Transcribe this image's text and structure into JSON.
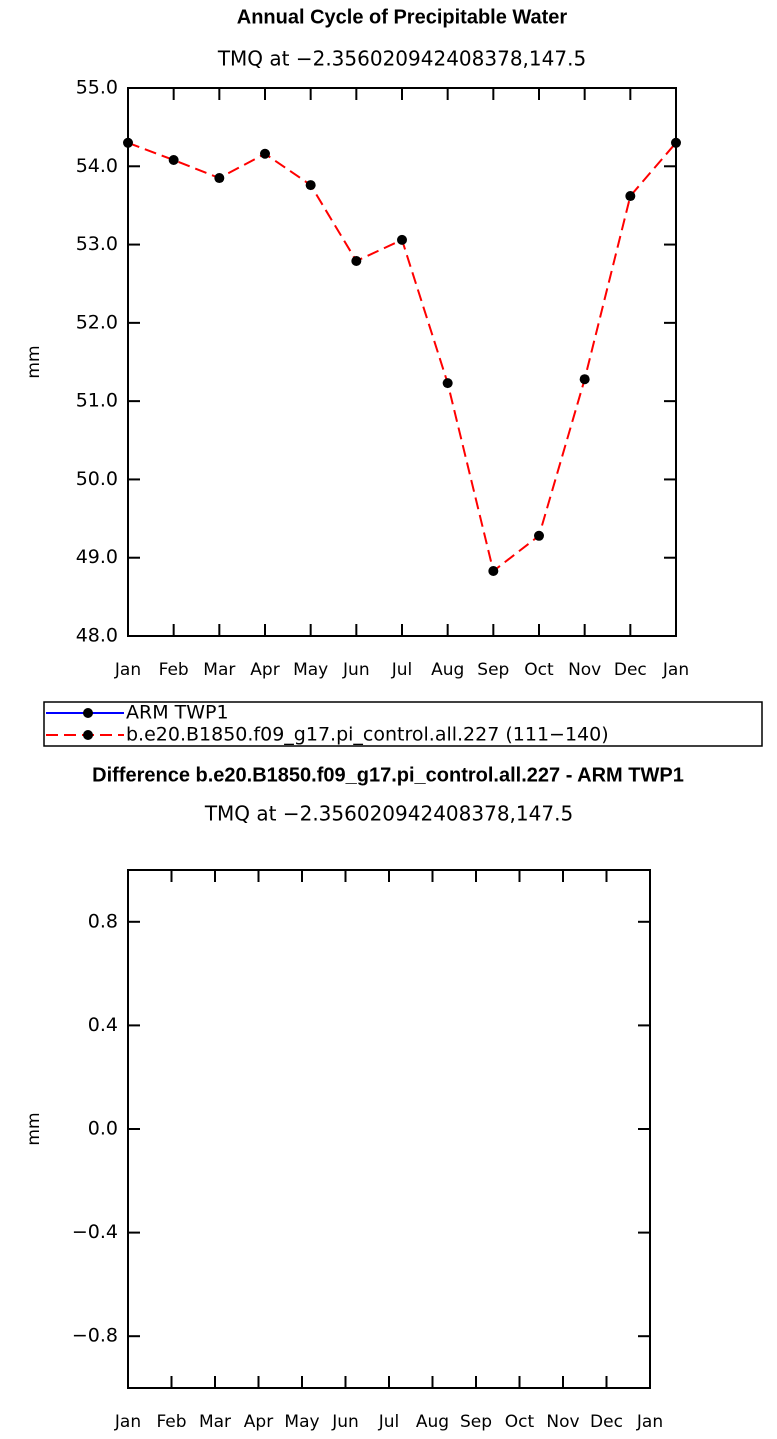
{
  "chart_data": [
    {
      "type": "line",
      "title": "Annual Cycle of Precipitable Water",
      "subtitle": "TMQ at −2.356020942408378,147.5",
      "ylabel": "mm",
      "categories": [
        "Jan",
        "Feb",
        "Mar",
        "Apr",
        "May",
        "Jun",
        "Jul",
        "Aug",
        "Sep",
        "Oct",
        "Nov",
        "Dec",
        "Jan"
      ],
      "series": [
        {
          "name": "ARM TWP1",
          "color": "#0000ff",
          "linestyle": "solid",
          "values": [
            null,
            null,
            null,
            null,
            null,
            null,
            null,
            null,
            null,
            null,
            null,
            null,
            null
          ]
        },
        {
          "name": "b.e20.B1850.f09_g17.pi_control.all.227 (111−140)",
          "color": "#ff0000",
          "linestyle": "dashed",
          "values": [
            54.3,
            54.08,
            53.85,
            54.16,
            53.76,
            52.79,
            53.06,
            51.23,
            48.83,
            49.28,
            51.28,
            53.62,
            54.3
          ]
        }
      ],
      "ylim": [
        48,
        55
      ],
      "yticks": [
        {
          "value": 48,
          "label": "48.0"
        },
        {
          "value": 49,
          "label": "49.0"
        },
        {
          "value": 50,
          "label": "50.0"
        },
        {
          "value": 51,
          "label": "51.0"
        },
        {
          "value": 52,
          "label": "52.0"
        },
        {
          "value": 53,
          "label": "53.0"
        },
        {
          "value": 54,
          "label": "54.0"
        },
        {
          "value": 55,
          "label": "55.0"
        }
      ],
      "legend": "bottom"
    },
    {
      "type": "line",
      "title": "Difference b.e20.B1850.f09_g17.pi_control.all.227 - ARM TWP1",
      "subtitle": "TMQ at −2.356020942408378,147.5",
      "ylabel": "mm",
      "categories": [
        "Jan",
        "Feb",
        "Mar",
        "Apr",
        "May",
        "Jun",
        "Jul",
        "Aug",
        "Sep",
        "Oct",
        "Nov",
        "Dec",
        "Jan"
      ],
      "series": [],
      "ylim": [
        -1,
        1
      ],
      "yticks": [
        {
          "value": -0.8,
          "label": "−0.8"
        },
        {
          "value": -0.4,
          "label": "−0.4"
        },
        {
          "value": 0,
          "label": "0.0"
        },
        0.4,
        0.8
      ]
    }
  ]
}
